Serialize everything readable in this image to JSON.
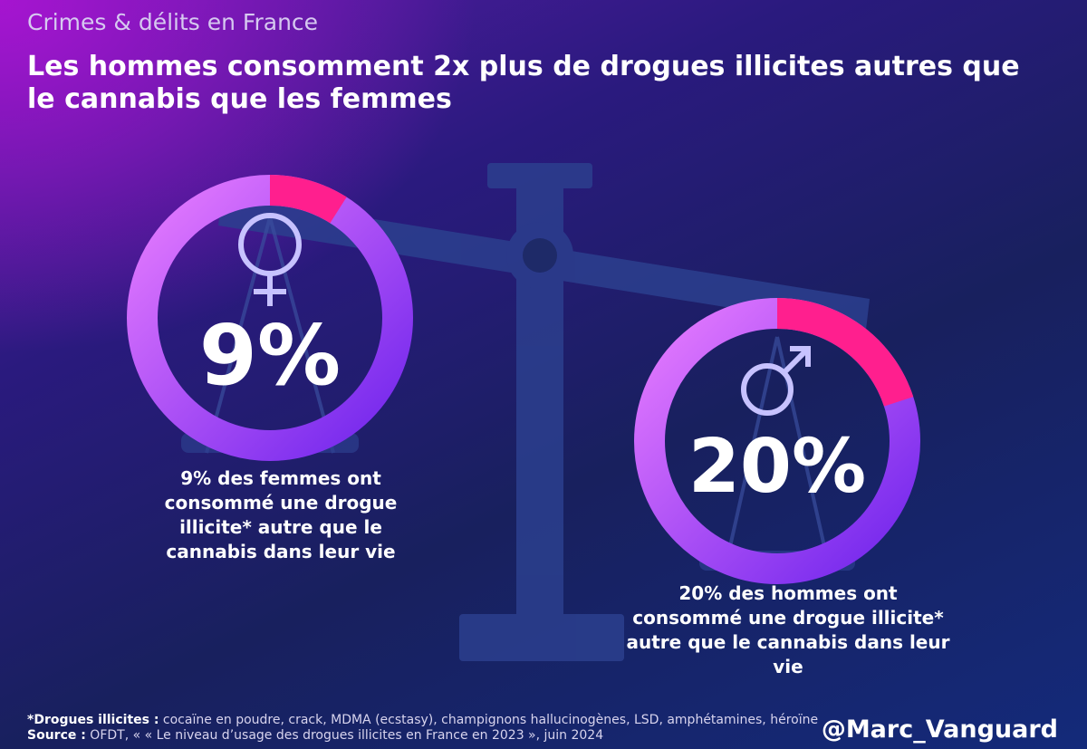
{
  "header": {
    "supertitle": "Crimes & délits en France",
    "title": "Les hommes consomment 2x plus de drogues illicites autres que le cannabis que les femmes"
  },
  "chart_data": {
    "type": "pie",
    "series": [
      {
        "name": "Femmes",
        "icon": "female-symbol-icon",
        "percent": 9,
        "label": "9%",
        "caption": "9% des femmes ont consommé une drogue illicite* autre que le cannabis dans leur vie"
      },
      {
        "name": "Hommes",
        "icon": "male-symbol-icon",
        "percent": 20,
        "label": "20%",
        "caption": "20% des hommes ont consommé une drogue illicite* autre que le cannabis dans leur vie"
      }
    ],
    "colors": {
      "highlight": "#ff1f8e",
      "ring_start": "#e77cff",
      "ring_end": "#7b2cf0"
    }
  },
  "footer": {
    "definition_label": "*Drogues illicites :",
    "definition_text": " cocaïne en poudre, crack, MDMA (ecstasy), champignons hallucinogènes, LSD, amphétamines, héroïne",
    "source_label": "Source :",
    "source_text": " OFDT, «  « Le niveau d’usage des drogues illicites en France en 2023 », juin 2024",
    "handle": "@Marc_Vanguard"
  }
}
